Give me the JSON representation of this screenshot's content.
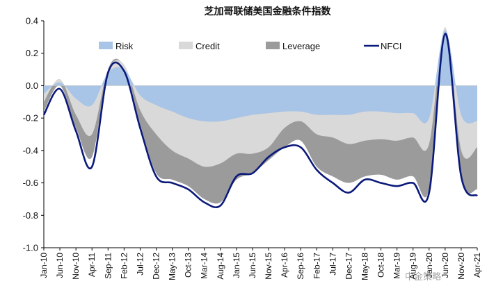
{
  "chart_data": {
    "type": "area",
    "title": "芝加哥联储美国金融条件指数",
    "xlabel": "",
    "ylabel": "",
    "ylim": [
      -1.0,
      0.4
    ],
    "yticks": [
      "0.4",
      "0.2",
      "0.0",
      "-0.2",
      "-0.4",
      "-0.6",
      "-0.8",
      "-1.0"
    ],
    "ytick_values": [
      0.4,
      0.2,
      0.0,
      -0.2,
      -0.4,
      -0.6,
      -0.8,
      -1.0
    ],
    "legend_position": "top",
    "categories": [
      "Jan-10",
      "Jun-10",
      "Nov-10",
      "Apr-11",
      "Sep-11",
      "Feb-12",
      "Jul-12",
      "Dec-12",
      "May-13",
      "Oct-13",
      "Mar-14",
      "Aug-14",
      "Jan-15",
      "Jun-15",
      "Nov-15",
      "Apr-16",
      "Sep-16",
      "Feb-17",
      "Jul-17",
      "Dec-17",
      "May-18",
      "Oct-18",
      "Mar-19",
      "Aug-19",
      "Jan-20",
      "Jun-20",
      "Nov-20",
      "Apr-21"
    ],
    "series": [
      {
        "name": "Risk",
        "kind": "area",
        "color": "#a8c4e6",
        "values": [
          -0.05,
          0.02,
          -0.08,
          -0.12,
          0.08,
          0.1,
          -0.06,
          -0.12,
          -0.16,
          -0.2,
          -0.22,
          -0.22,
          -0.2,
          -0.18,
          -0.17,
          -0.16,
          -0.16,
          -0.18,
          -0.18,
          -0.18,
          -0.16,
          -0.16,
          -0.17,
          -0.17,
          -0.2,
          0.34,
          -0.18,
          -0.22
        ]
      },
      {
        "name": "Credit",
        "kind": "area",
        "color": "#d9d9d9",
        "values": [
          -0.1,
          0.04,
          -0.18,
          -0.3,
          0.1,
          0.13,
          -0.15,
          -0.3,
          -0.4,
          -0.45,
          -0.5,
          -0.48,
          -0.42,
          -0.42,
          -0.38,
          -0.26,
          -0.22,
          -0.3,
          -0.32,
          -0.36,
          -0.34,
          -0.33,
          -0.34,
          -0.32,
          -0.36,
          0.36,
          -0.4,
          -0.38
        ]
      },
      {
        "name": "Leverage",
        "kind": "area",
        "color": "#9b9b9b",
        "values": [
          -0.16,
          0.0,
          -0.26,
          -0.44,
          0.1,
          0.12,
          -0.24,
          -0.54,
          -0.58,
          -0.62,
          -0.7,
          -0.72,
          -0.58,
          -0.54,
          -0.46,
          -0.38,
          -0.34,
          -0.5,
          -0.56,
          -0.6,
          -0.56,
          -0.55,
          -0.58,
          -0.56,
          -0.64,
          0.3,
          -0.58,
          -0.64
        ]
      },
      {
        "name": "NFCI",
        "kind": "line",
        "color": "#0b1a7a",
        "values": [
          -0.18,
          -0.02,
          -0.28,
          -0.5,
          0.08,
          0.09,
          -0.26,
          -0.56,
          -0.6,
          -0.64,
          -0.72,
          -0.74,
          -0.56,
          -0.54,
          -0.44,
          -0.38,
          -0.38,
          -0.52,
          -0.6,
          -0.66,
          -0.58,
          -0.6,
          -0.62,
          -0.6,
          -0.66,
          0.32,
          -0.56,
          -0.68
        ]
      }
    ]
  },
  "watermark": "中金策略"
}
